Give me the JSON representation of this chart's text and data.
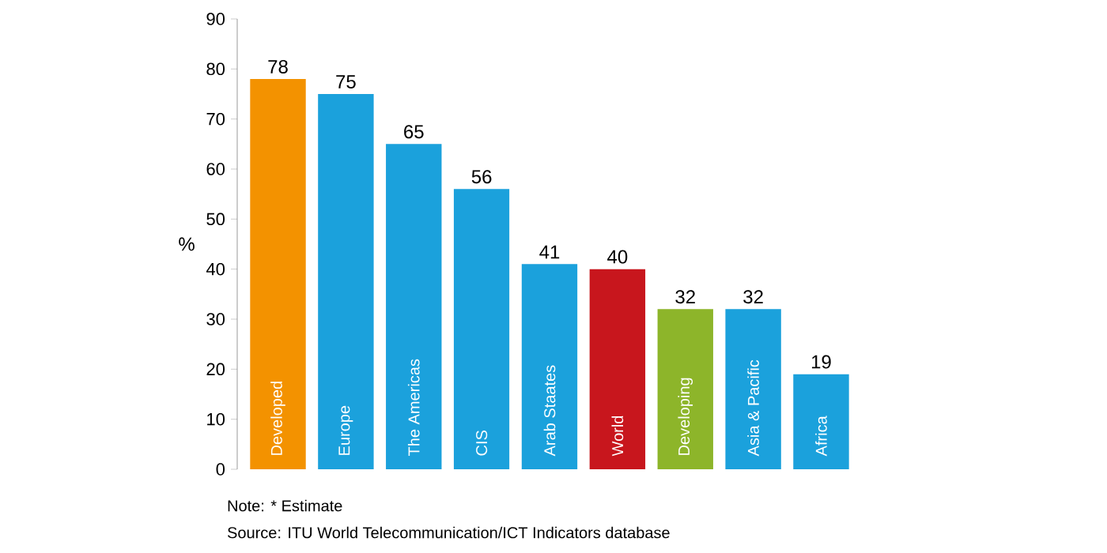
{
  "chart_data": {
    "type": "bar",
    "categories": [
      "Developed",
      "Europe",
      "The Americas",
      "CIS",
      "Arab Staates",
      "World",
      "Developing",
      "Asia & Pacific",
      "Africa"
    ],
    "values": [
      78,
      75,
      65,
      56,
      41,
      40,
      32,
      32,
      19
    ],
    "colors": [
      "#f39200",
      "#1ba1dc",
      "#1ba1dc",
      "#1ba1dc",
      "#1ba1dc",
      "#c8161d",
      "#8db52a",
      "#1ba1dc",
      "#1ba1dc"
    ],
    "ylabel": "%",
    "ylim": [
      0,
      90
    ],
    "yticks": [
      0,
      10,
      20,
      30,
      40,
      50,
      60,
      70,
      80,
      90
    ],
    "data_labels": true,
    "grid": false,
    "tick_labels": "y",
    "annotations": [
      "Note: * Estimate",
      "Source: ITU World Telecommunication/ICT Indicators database"
    ]
  }
}
